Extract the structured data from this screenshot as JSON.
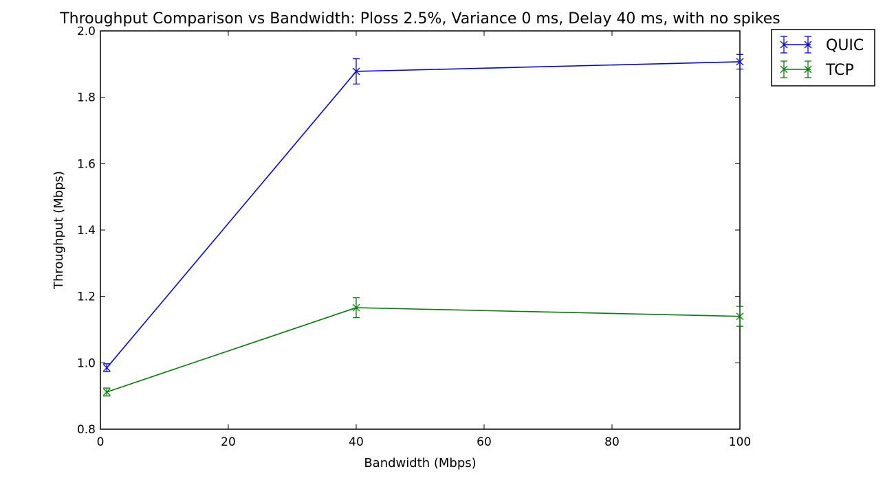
{
  "chart_data": {
    "type": "line",
    "title": "Throughput Comparison vs Bandwidth: Ploss 2.5%, Variance 0 ms, Delay 40 ms, with no spikes",
    "xlabel": "Bandwidth (Mbps)",
    "ylabel": "Throughput (Mbps)",
    "xlim": [
      0,
      100
    ],
    "ylim": [
      0.8,
      2.0
    ],
    "xticks": [
      0,
      20,
      40,
      60,
      80,
      100
    ],
    "xtick_labels": [
      "0",
      "20",
      "40",
      "60",
      "80",
      "100"
    ],
    "yticks": [
      0.8,
      1.0,
      1.2,
      1.4,
      1.6,
      1.8,
      2.0
    ],
    "ytick_labels": [
      "0.8",
      "1.0",
      "1.2",
      "1.4",
      "1.6",
      "1.8",
      "2.0"
    ],
    "grid": false,
    "legend_placement": "outside top-right",
    "x": [
      1,
      40,
      100
    ],
    "series": [
      {
        "name": "QUIC",
        "color": "#0000ff",
        "marker": "x",
        "values": [
          0.985,
          1.878,
          1.907
        ],
        "errors": [
          0.012,
          0.038,
          0.022
        ]
      },
      {
        "name": "TCP",
        "color": "#008000",
        "marker": "x",
        "values": [
          0.912,
          1.166,
          1.14
        ],
        "errors": [
          0.012,
          0.03,
          0.03
        ]
      }
    ]
  }
}
